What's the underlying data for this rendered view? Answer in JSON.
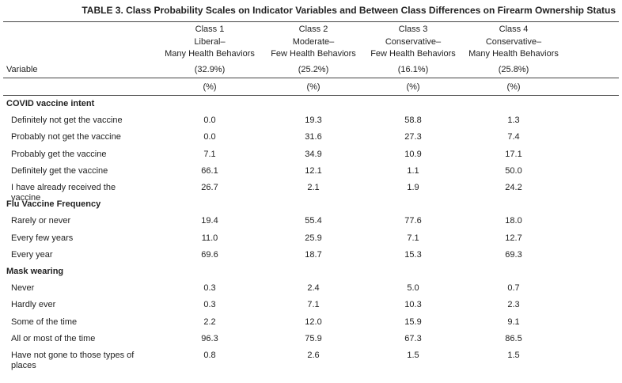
{
  "title": "TABLE 3. Class Probability Scales on Indicator Variables and Between Class Differences on Firearm Ownership Status",
  "table": {
    "variable_header": "Variable",
    "columns": [
      {
        "lines": [
          "Class 1",
          "Liberal–",
          "Many Health Behaviors"
        ],
        "share": "(32.9%)",
        "unit": "(%)"
      },
      {
        "lines": [
          "Class 2",
          "Moderate–",
          "Few Health Behaviors"
        ],
        "share": "(25.2%)",
        "unit": "(%)"
      },
      {
        "lines": [
          "Class 3",
          "Conservative–",
          "Few Health Behaviors"
        ],
        "share": "(16.1%)",
        "unit": "(%)"
      },
      {
        "lines": [
          "Class 4",
          "Conservative–",
          "Many Health Behaviors"
        ],
        "share": "(25.8%)",
        "unit": "(%)"
      }
    ],
    "sections": [
      {
        "heading": "COVID vaccine intent",
        "rows": [
          {
            "label": "Definitely not get the vaccine",
            "values": [
              "0.0",
              "19.3",
              "58.8",
              "1.3"
            ]
          },
          {
            "label": "Probably not get the vaccine",
            "values": [
              "0.0",
              "31.6",
              "27.3",
              "7.4"
            ]
          },
          {
            "label": "Probably get the vaccine",
            "values": [
              "7.1",
              "34.9",
              "10.9",
              "17.1"
            ]
          },
          {
            "label": "Definitely get the vaccine",
            "values": [
              "66.1",
              "12.1",
              "1.1",
              "50.0"
            ]
          },
          {
            "label": "I have already received the vaccine",
            "values": [
              "26.7",
              "2.1",
              "1.9",
              "24.2"
            ]
          }
        ]
      },
      {
        "heading": "Flu Vaccine Frequency",
        "rows": [
          {
            "label": "Rarely or never",
            "values": [
              "19.4",
              "55.4",
              "77.6",
              "18.0"
            ]
          },
          {
            "label": "Every few years",
            "values": [
              "11.0",
              "25.9",
              "7.1",
              "12.7"
            ]
          },
          {
            "label": "Every year",
            "values": [
              "69.6",
              "18.7",
              "15.3",
              "69.3"
            ]
          }
        ]
      },
      {
        "heading": "Mask wearing",
        "rows": [
          {
            "label": "Never",
            "values": [
              "0.3",
              "2.4",
              "5.0",
              "0.7"
            ]
          },
          {
            "label": "Hardly ever",
            "values": [
              "0.3",
              "7.1",
              "10.3",
              "2.3"
            ]
          },
          {
            "label": "Some of the time",
            "values": [
              "2.2",
              "12.0",
              "15.9",
              "9.1"
            ]
          },
          {
            "label": "All or most of the time",
            "values": [
              "96.3",
              "75.9",
              "67.3",
              "86.5"
            ]
          },
          {
            "label": "Have not gone to those types of places",
            "values": [
              "0.8",
              "2.6",
              "1.5",
              "1.5"
            ]
          }
        ]
      }
    ]
  }
}
